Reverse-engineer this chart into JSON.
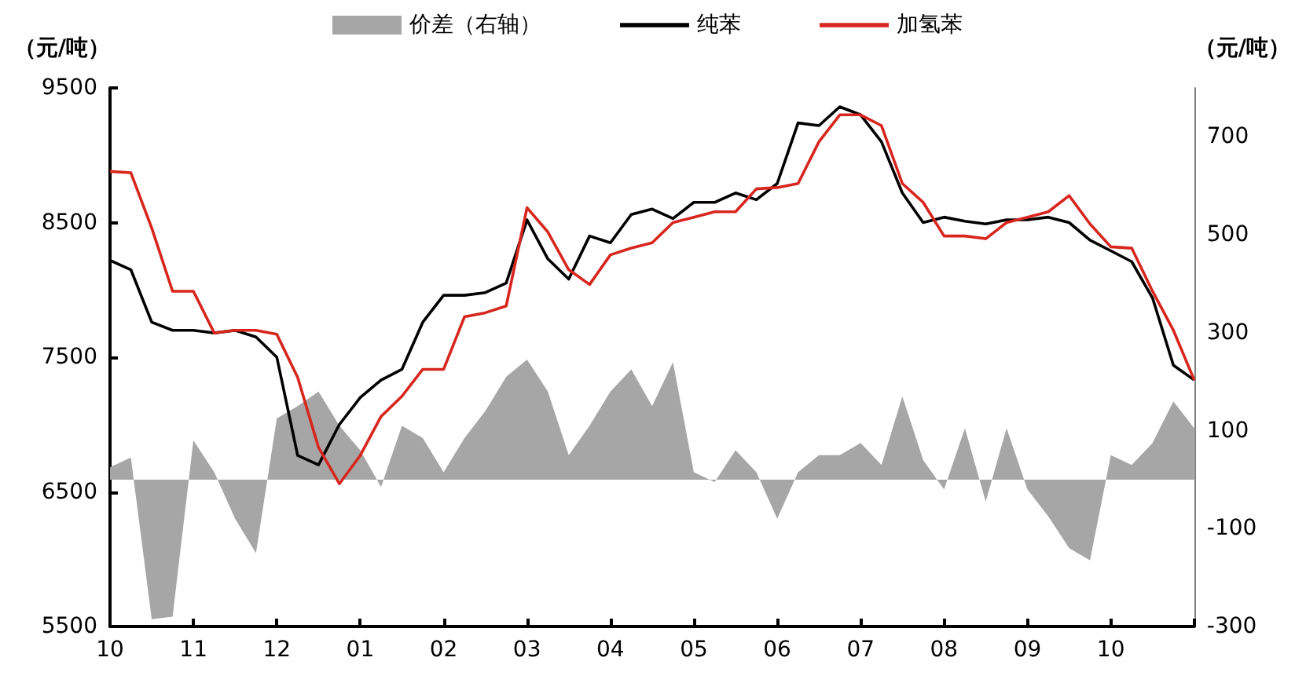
{
  "chart_data": {
    "type": "line",
    "ylabel": "（元/吨）",
    "y2label": "（元/吨）",
    "categories": [
      "10",
      null,
      null,
      null,
      "11",
      null,
      null,
      null,
      "12",
      null,
      null,
      null,
      "01",
      null,
      null,
      null,
      "02",
      null,
      null,
      null,
      "03",
      null,
      null,
      null,
      "04",
      null,
      null,
      null,
      "05",
      null,
      null,
      null,
      "06",
      null,
      null,
      null,
      "07",
      null,
      null,
      null,
      "08",
      null,
      null,
      null,
      "09",
      null,
      null,
      null,
      "10",
      null,
      null,
      null,
      null
    ],
    "series": [
      {
        "name": "价差（右轴）",
        "type": "area",
        "axis": "y2",
        "color": "#a6a6a6",
        "values": [
          25,
          45,
          -285,
          -280,
          80,
          15,
          -80,
          -150,
          125,
          150,
          180,
          110,
          60,
          -15,
          110,
          85,
          15,
          85,
          140,
          210,
          245,
          180,
          50,
          110,
          180,
          225,
          150,
          240,
          15,
          -5,
          60,
          15,
          -80,
          15,
          50,
          50,
          75,
          30,
          170,
          40,
          -20,
          105,
          -45,
          105,
          -20,
          -75,
          -140,
          -165,
          50,
          30,
          75,
          160,
          105
        ]
      },
      {
        "name": "纯苯",
        "color": "#000000",
        "values": [
          8220,
          8150,
          7760,
          7700,
          7700,
          7680,
          7700,
          7650,
          7500,
          6770,
          6700,
          7000,
          7200,
          7330,
          7410,
          7760,
          7960,
          7960,
          7980,
          8050,
          8520,
          8230,
          8080,
          8400,
          8350,
          8560,
          8600,
          8530,
          8650,
          8650,
          8720,
          8670,
          8790,
          9240,
          9220,
          9360,
          9300,
          9100,
          8720,
          8500,
          8540,
          8510,
          8490,
          8520,
          8520,
          8540,
          8500,
          8370,
          8290,
          8210,
          7940,
          7440,
          7330
        ]
      },
      {
        "name": "加氢苯",
        "color": "#d7261e",
        "values": [
          8880,
          8870,
          8460,
          7990,
          7990,
          7680,
          7700,
          7700,
          7670,
          7350,
          6830,
          6560,
          6770,
          7060,
          7210,
          7410,
          7410,
          7800,
          7830,
          7880,
          8610,
          8430,
          8150,
          8040,
          8260,
          8310,
          8350,
          8500,
          8540,
          8580,
          8580,
          8750,
          8760,
          8790,
          9100,
          9300,
          9300,
          9220,
          8790,
          8650,
          8400,
          8400,
          8380,
          8500,
          8540,
          8580,
          8700,
          8490,
          8320,
          8310,
          7990,
          7700,
          7330
        ]
      }
    ],
    "ylim": [
      5500,
      9500
    ],
    "yticks": [
      5500,
      6500,
      7500,
      8500,
      9500
    ],
    "y2lim": [
      -300,
      800
    ],
    "y2ticks": [
      -300,
      -100,
      100,
      300,
      500,
      700
    ],
    "legend": "top",
    "marker": "none",
    "grid": false
  }
}
